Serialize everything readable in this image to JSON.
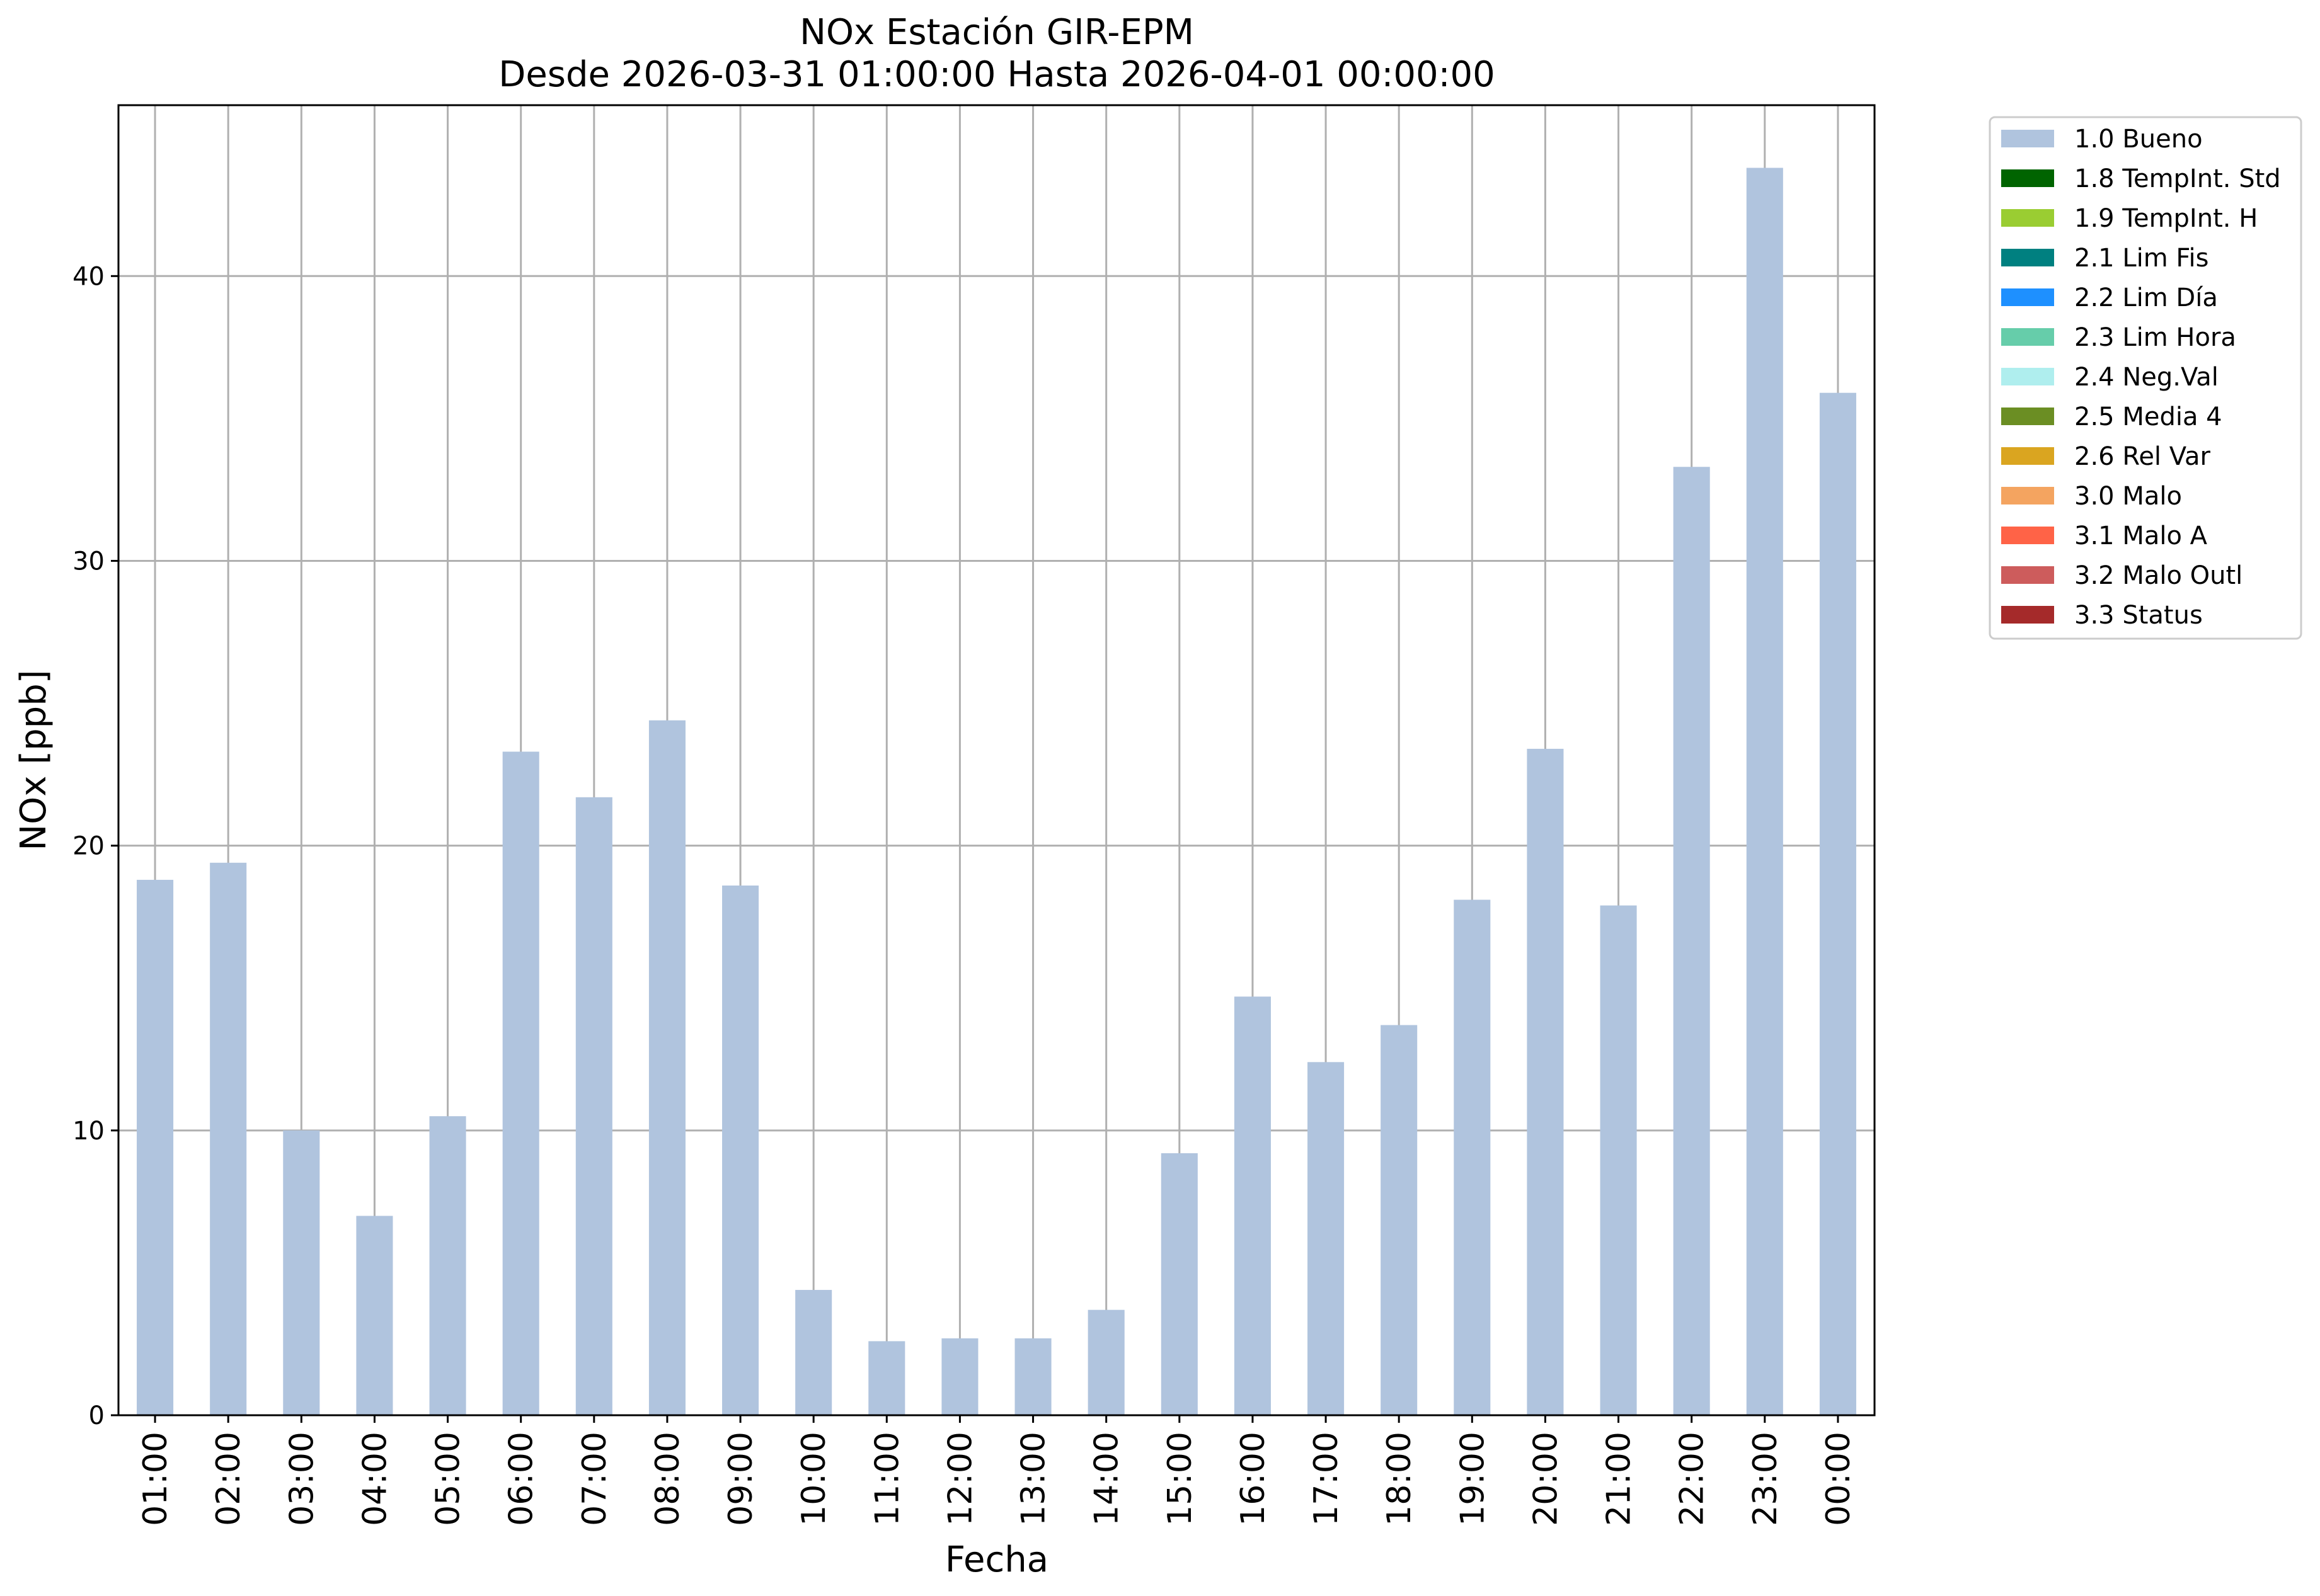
{
  "chart_data": {
    "type": "bar",
    "title_lines": [
      "NOx Estación GIR-EPM",
      "Desde 2026-03-31 01:00:00 Hasta 2026-04-01 00:00:00"
    ],
    "xlabel": "Fecha",
    "ylabel": "NOx [ppb]",
    "ylim": [
      0,
      46
    ],
    "yticks": [
      0,
      10,
      20,
      30,
      40
    ],
    "grid": true,
    "legend_position": "outside-top-right",
    "categories": [
      "01:00",
      "02:00",
      "03:00",
      "04:00",
      "05:00",
      "06:00",
      "07:00",
      "08:00",
      "09:00",
      "10:00",
      "11:00",
      "12:00",
      "13:00",
      "14:00",
      "15:00",
      "16:00",
      "17:00",
      "18:00",
      "19:00",
      "20:00",
      "21:00",
      "22:00",
      "23:00",
      "00:00"
    ],
    "series": [
      {
        "name": "1.0 Bueno",
        "color": "#b0c4de",
        "values": [
          18.8,
          19.4,
          10.0,
          7.0,
          10.5,
          23.3,
          21.7,
          24.4,
          18.6,
          4.4,
          2.6,
          2.7,
          2.7,
          3.7,
          9.2,
          14.7,
          12.4,
          13.7,
          18.1,
          23.4,
          17.9,
          33.3,
          43.8,
          35.9
        ]
      }
    ],
    "legend": [
      {
        "label": "1.0 Bueno",
        "color": "#b0c4de"
      },
      {
        "label": "1.8 TempInt. Std",
        "color": "#006400"
      },
      {
        "label": "1.9 TempInt. H",
        "color": "#9acd32"
      },
      {
        "label": "2.1 Lim Fis",
        "color": "#008080"
      },
      {
        "label": "2.2 Lim Día",
        "color": "#1e90ff"
      },
      {
        "label": "2.3 Lim Hora",
        "color": "#66cdaa"
      },
      {
        "label": "2.4 Neg.Val",
        "color": "#afeeee"
      },
      {
        "label": "2.5 Media 4",
        "color": "#6b8e23"
      },
      {
        "label": "2.6 Rel Var",
        "color": "#daa520"
      },
      {
        "label": "3.0 Malo",
        "color": "#f4a460"
      },
      {
        "label": "3.1 Malo A",
        "color": "#ff6347"
      },
      {
        "label": "3.2 Malo Outl",
        "color": "#cd5c5c"
      },
      {
        "label": "3.3 Status",
        "color": "#a52a2a"
      }
    ]
  }
}
